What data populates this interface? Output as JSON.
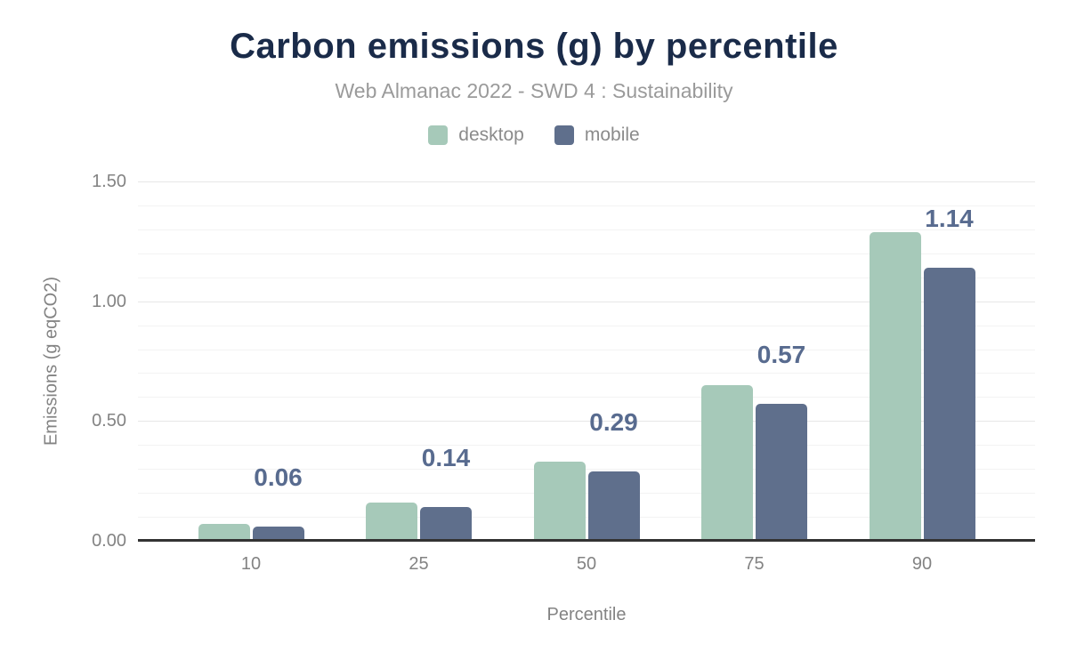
{
  "chart_data": {
    "type": "bar",
    "title": "Carbon emissions (g) by percentile",
    "subtitle": "Web Almanac 2022 - SWD 4 : Sustainability",
    "xlabel": "Percentile",
    "ylabel": "Emissions (g eqCO2)",
    "categories": [
      "10",
      "25",
      "50",
      "75",
      "90"
    ],
    "series": [
      {
        "name": "desktop",
        "color": "#a6c9b9",
        "values": [
          0.07,
          0.16,
          0.33,
          0.65,
          1.29
        ]
      },
      {
        "name": "mobile",
        "color": "#5f6f8c",
        "values": [
          0.06,
          0.14,
          0.29,
          0.57,
          1.14
        ]
      }
    ],
    "data_labels": {
      "series": "mobile",
      "values": [
        "0.06",
        "0.14",
        "0.29",
        "0.57",
        "1.14"
      ],
      "color": "#586b8f"
    },
    "ylim": [
      0,
      1.5
    ],
    "yticks": [
      {
        "label": "0.00",
        "value": 0
      },
      {
        "label": "0.50",
        "value": 0.5
      },
      {
        "label": "1.00",
        "value": 1.0
      },
      {
        "label": "1.50",
        "value": 1.5
      }
    ],
    "grid": {
      "minor_step": 0.1,
      "major_step": 0.5,
      "minor_color": "#f3f3f3",
      "major_color": "#e7e7e7"
    },
    "axis_line_color": "#333333",
    "legend_position": "top",
    "colors": {
      "title": "#1a2b49",
      "subtitle": "#9a9a9a",
      "axis_text": "#838383",
      "legend_text": "#8b8b8b"
    }
  }
}
